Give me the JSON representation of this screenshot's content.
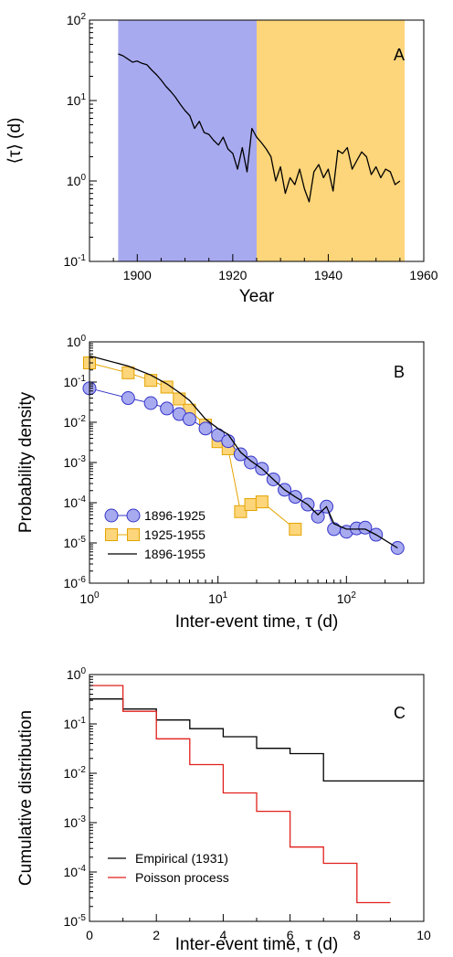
{
  "chart_data": [
    {
      "panel": "A",
      "type": "line",
      "xlabel": "Year",
      "ylabel": "⟨τ⟩ (d)",
      "xlim": [
        1890,
        1960
      ],
      "ylim": [
        0.1,
        100
      ],
      "yscale": "log",
      "x_ticks": [
        1900,
        1920,
        1940,
        1960
      ],
      "y_ticks": [
        {
          "value": 0.1,
          "exp": "-1"
        },
        {
          "value": 1,
          "exp": "0"
        },
        {
          "value": 10,
          "exp": "1"
        },
        {
          "value": 100,
          "exp": "2"
        }
      ],
      "shaded_regions": [
        {
          "x0": 1896,
          "x1": 1925,
          "color": "#a8aaf0"
        },
        {
          "x0": 1925,
          "x1": 1956,
          "color": "#fdd57a"
        }
      ],
      "series": [
        {
          "color": "#000000",
          "x": [
            1896,
            1897,
            1898,
            1899,
            1900,
            1901,
            1902,
            1903,
            1904,
            1905,
            1906,
            1907,
            1908,
            1909,
            1910,
            1911,
            1912,
            1913,
            1914,
            1915,
            1916,
            1917,
            1918,
            1919,
            1920,
            1921,
            1922,
            1923,
            1924,
            1925,
            1926,
            1927,
            1928,
            1929,
            1930,
            1931,
            1932,
            1933,
            1934,
            1935,
            1936,
            1937,
            1938,
            1939,
            1940,
            1941,
            1942,
            1943,
            1944,
            1945,
            1946,
            1947,
            1948,
            1949,
            1950,
            1951,
            1952,
            1953,
            1954,
            1955
          ],
          "values": [
            38,
            36,
            33,
            30,
            31,
            29,
            28,
            24,
            21,
            18,
            15,
            13,
            11,
            9,
            7.5,
            6.5,
            4.5,
            5.5,
            4,
            3.8,
            3.2,
            2.8,
            3.5,
            2.5,
            2.2,
            1.4,
            2.6,
            1.3,
            4.5,
            3.5,
            3.0,
            2.5,
            2.0,
            1.0,
            1.5,
            0.7,
            1.1,
            0.9,
            1.4,
            0.8,
            0.55,
            1.3,
            1.6,
            1.1,
            1.4,
            0.75,
            2.4,
            2.2,
            2.6,
            1.4,
            1.8,
            2.3,
            2.0,
            1.2,
            1.5,
            1.1,
            1.4,
            1.3,
            0.9,
            1.0
          ]
        }
      ]
    },
    {
      "panel": "B",
      "type": "scatter",
      "xlabel": "Inter-event time, τ (d)",
      "ylabel": "Probability density",
      "xscale": "log",
      "yscale": "log",
      "xlim": [
        1,
        400
      ],
      "ylim": [
        1e-06,
        1
      ],
      "x_ticks": [
        {
          "value": 1,
          "exp": "0"
        },
        {
          "value": 10,
          "exp": "1"
        },
        {
          "value": 100,
          "exp": "2"
        }
      ],
      "y_ticks": [
        {
          "value": 1e-06,
          "exp": "-6"
        },
        {
          "value": 1e-05,
          "exp": "-5"
        },
        {
          "value": 0.0001,
          "exp": "-4"
        },
        {
          "value": 0.001,
          "exp": "-3"
        },
        {
          "value": 0.01,
          "exp": "-2"
        },
        {
          "value": 0.1,
          "exp": "-1"
        },
        {
          "value": 1,
          "exp": "0"
        }
      ],
      "legend_position": "bottom-left",
      "series": [
        {
          "name": "1896-1925",
          "marker": "circle",
          "color": "#a8aaf0",
          "stroke": "#3535c8",
          "x": [
            1,
            2,
            3,
            4,
            5,
            6,
            8,
            10,
            12,
            15,
            18,
            22,
            27,
            33,
            40,
            50,
            60,
            70,
            80,
            100,
            120,
            140,
            170,
            250
          ],
          "values": [
            0.07,
            0.04,
            0.03,
            0.022,
            0.016,
            0.012,
            0.007,
            0.0048,
            0.0034,
            0.0016,
            0.001,
            0.0007,
            0.00038,
            0.00021,
            0.00014,
            9e-05,
            4.5e-05,
            8e-05,
            2.2e-05,
            1.9e-05,
            2.3e-05,
            2.4e-05,
            1.6e-05,
            7.5e-06
          ]
        },
        {
          "name": "1925-1955",
          "marker": "square",
          "color": "#fdd57a",
          "stroke": "#e3a400",
          "x": [
            1,
            2,
            3,
            4,
            5,
            6,
            8,
            10,
            12,
            15,
            18,
            22,
            40
          ],
          "values": [
            0.3,
            0.17,
            0.11,
            0.075,
            0.038,
            0.02,
            0.0085,
            0.0033,
            0.0022,
            6e-05,
            9e-05,
            0.000105,
            2.2e-05
          ]
        },
        {
          "name": "1896-1955",
          "marker": "line",
          "color": "#000000",
          "x": [
            1,
            2,
            3,
            4,
            5,
            6,
            8,
            10,
            12,
            15,
            18,
            22,
            27,
            33,
            40,
            50,
            60,
            70,
            80,
            100,
            120,
            140,
            170,
            250
          ],
          "values": [
            0.45,
            0.25,
            0.15,
            0.09,
            0.055,
            0.035,
            0.012,
            0.007,
            0.005,
            0.0018,
            0.0011,
            0.0007,
            0.00038,
            0.00021,
            0.00014,
            9e-05,
            5e-05,
            8e-05,
            3e-05,
            2.2e-05,
            2.2e-05,
            2.2e-05,
            1.6e-05,
            7.5e-06
          ]
        }
      ]
    },
    {
      "panel": "C",
      "type": "line",
      "xlabel": "Inter-event time, τ (d)",
      "ylabel": "Cumulative distribution",
      "yscale": "log",
      "xlim": [
        0,
        10
      ],
      "ylim": [
        1e-05,
        1
      ],
      "x_ticks": [
        0,
        2,
        4,
        6,
        8,
        10
      ],
      "y_ticks": [
        {
          "value": 1e-05,
          "exp": "-5"
        },
        {
          "value": 0.0001,
          "exp": "-4"
        },
        {
          "value": 0.001,
          "exp": "-3"
        },
        {
          "value": 0.01,
          "exp": "-2"
        },
        {
          "value": 0.1,
          "exp": "-1"
        },
        {
          "value": 1,
          "exp": "0"
        }
      ],
      "legend_position": "bottom-left",
      "series": [
        {
          "name": "Empirical (1931)",
          "color": "#000000",
          "step_x": [
            0,
            1,
            2,
            3,
            4,
            5,
            6,
            7,
            10
          ],
          "values": [
            0.32,
            0.2,
            0.12,
            0.08,
            0.055,
            0.032,
            0.025,
            0.007
          ]
        },
        {
          "name": "Poisson process",
          "color": "#e0201b",
          "step_x": [
            0,
            1,
            2,
            3,
            4,
            5,
            6,
            7,
            8,
            9
          ],
          "values": [
            0.6,
            0.18,
            0.05,
            0.015,
            0.004,
            0.0017,
            0.00032,
            0.00015,
            2.4e-05
          ]
        }
      ]
    }
  ]
}
